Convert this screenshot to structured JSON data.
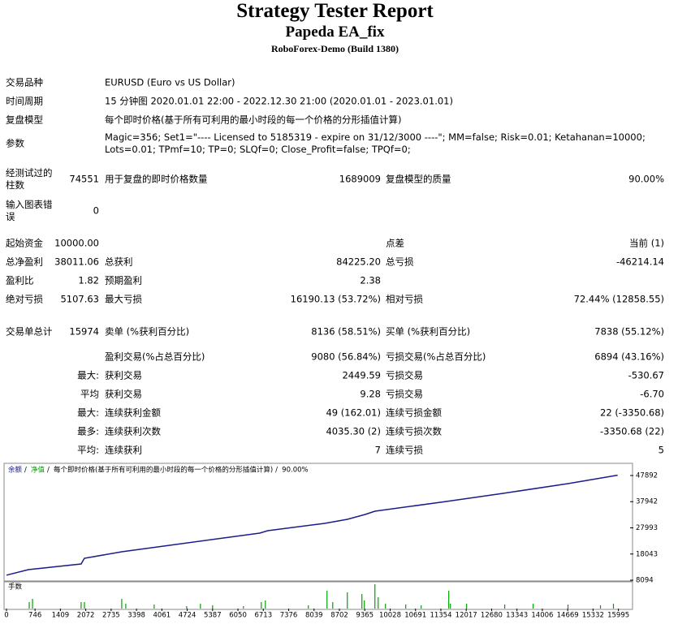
{
  "header": {
    "title": "Strategy Tester Report",
    "subtitle": "Papeda EA_fix",
    "server": "RoboForex-Demo (Build 1380)"
  },
  "info": [
    {
      "label": "交易品种",
      "value": "EURUSD (Euro vs US Dollar)"
    },
    {
      "label": "时间周期",
      "value": "15 分钟图 2020.01.01 22:00 - 2022.12.30 21:00 (2020.01.01 - 2023.01.01)"
    },
    {
      "label": "复盘模型",
      "value": "每个即时价格(基于所有可利用的最小时段的每一个价格的分形插值计算)"
    },
    {
      "label": "参数",
      "value": "Magic=356; Set1=\"---- Licensed to 5185319 - expire on 31/12/3000 ----\"; MM=false; Risk=0.01; Ketahanan=10000; Lots=0.01; TPmf=10; TP=0; SLQf=0; Close_Profit=false; TPQf=0;"
    }
  ],
  "stats": [
    {
      "a": "经测试过的柱数",
      "av": "74551",
      "b": "用于复盘的即时价格数量",
      "bv": "1689009",
      "c": "复盘模型的质量",
      "cv": "90.00%"
    },
    {
      "a": "输入图表错误",
      "av": "0"
    },
    {
      "a": "起始资金",
      "av": "10000.00",
      "c": "点差",
      "cv": "当前 (1)"
    },
    {
      "a": "总净盈利",
      "av": "38011.06",
      "b": "总获利",
      "bv": "84225.20",
      "c": "总亏损",
      "cv": "-46214.14"
    },
    {
      "a": "盈利比",
      "av": "1.82",
      "b": "预期盈利",
      "bv": "2.38"
    },
    {
      "a": "绝对亏损",
      "av": "5107.63",
      "b": "最大亏损",
      "bv": "16190.13 (53.72%)",
      "c": "相对亏损",
      "cv": "72.44% (12858.55)"
    },
    {
      "a": "交易单总计",
      "av": "15974",
      "b": "卖单 (%获利百分比)",
      "bv": "8136 (58.51%)",
      "c": "买单 (%获利百分比)",
      "cv": "7838 (55.12%)"
    },
    {
      "b": "盈利交易(%占总百分比)",
      "bv": "9080 (56.84%)",
      "c": "亏损交易(%占总百分比)",
      "cv": "6894 (43.16%)"
    },
    {
      "av": "最大:",
      "b": "获利交易",
      "bv": "2449.59",
      "c": "亏损交易",
      "cv": "-530.67"
    },
    {
      "av": "平均",
      "b": "获利交易",
      "bv": "9.28",
      "c": "亏损交易",
      "cv": "-6.70"
    },
    {
      "av": "最大:",
      "b": "连续获利金额",
      "bv": "49 (162.01)",
      "c": "连续亏损金额",
      "cv": "22 (-3350.68)"
    },
    {
      "av": "最多:",
      "b": "连续获利次数",
      "bv": "4035.30 (2)",
      "c": "连续亏损次数",
      "cv": "-3350.68 (22)"
    },
    {
      "av": "平均:",
      "b": "连续获利",
      "bv": "7",
      "c": "连续亏损",
      "cv": "5"
    }
  ],
  "chart_data": {
    "type": "line",
    "legend": [
      {
        "name": "余额",
        "color": "#1c1c8a"
      },
      {
        "name": "净值",
        "color": "#00a000"
      }
    ],
    "model_note": "每个即时价格(基于所有可利用的最小时段的每一个价格的分形插值计算)",
    "quality": "90.00%",
    "x": [
      0,
      573,
      1951,
      2036,
      3012,
      6618,
      6830,
      8315,
      8909,
      9375,
      9630,
      11497,
      12981,
      14678,
      15974
    ],
    "series": [
      {
        "name": "余额",
        "color": "#1c1c8a",
        "values": [
          10000,
          12105,
          14264,
          16424,
          18892,
          25987,
          26913,
          29689,
          31232,
          33083,
          34317,
          38019,
          41104,
          44806,
          48011
        ]
      }
    ],
    "xlim": [
      0,
      16300
    ],
    "ylim": [
      8094,
      51593
    ],
    "yticks": [
      8094,
      18043,
      27993,
      37942,
      47892
    ],
    "xticks": [
      0,
      746,
      1409,
      2072,
      2735,
      3398,
      4061,
      4724,
      5387,
      6050,
      6713,
      7376,
      8039,
      8702,
      9365,
      10028,
      10691,
      11354,
      12017,
      12680,
      13343,
      14006,
      14669,
      15332,
      15995
    ],
    "volume": {
      "label": "手数",
      "color": "#00a000",
      "ylim": [
        0,
        32
      ],
      "x": [
        594,
        679,
        1951,
        2036,
        3012,
        3118,
        3860,
        4709,
        5069,
        5387,
        6193,
        6660,
        6766,
        7890,
        8378,
        8527,
        8909,
        9290,
        9354,
        9630,
        9715,
        9906,
        10436,
        10839,
        11560,
        11603,
        12027,
        13023,
        13765,
        14677,
        15526,
        15865
      ],
      "values": [
        8,
        12,
        8,
        8,
        12,
        6,
        5,
        3,
        6,
        4,
        3,
        8,
        10,
        4,
        22,
        8,
        20,
        18,
        10,
        30,
        14,
        6,
        5,
        4,
        22,
        6,
        6,
        5,
        6,
        5,
        4,
        6
      ]
    }
  }
}
